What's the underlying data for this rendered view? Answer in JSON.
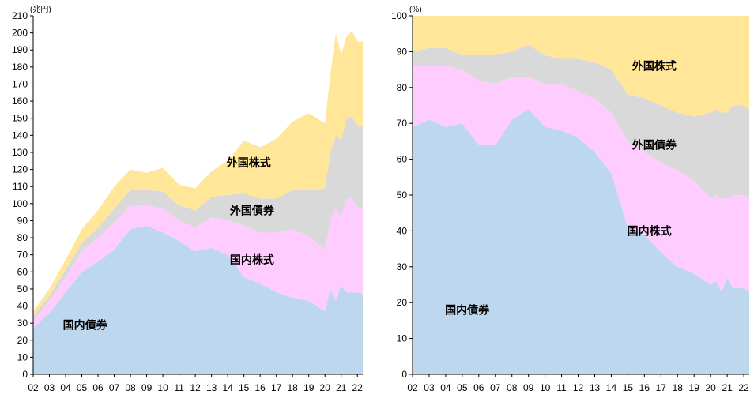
{
  "chart_data": [
    {
      "type": "area",
      "stacked": true,
      "unit_label": "(兆円)",
      "x": [
        "02",
        "03",
        "04",
        "05",
        "06",
        "07",
        "08",
        "09",
        "10",
        "11",
        "12",
        "13",
        "14",
        "15",
        "16",
        "17",
        "18",
        "19",
        "20",
        "20.33",
        "20.67",
        "21",
        "21.33",
        "21.67",
        "22",
        "22.33"
      ],
      "xticks": [
        "02",
        "03",
        "04",
        "05",
        "06",
        "07",
        "08",
        "09",
        "10",
        "11",
        "12",
        "13",
        "14",
        "15",
        "16",
        "17",
        "18",
        "19",
        "20",
        "21",
        "22"
      ],
      "ylim": [
        0,
        210
      ],
      "yticks": [
        0,
        10,
        20,
        30,
        40,
        50,
        60,
        70,
        80,
        90,
        100,
        110,
        120,
        130,
        140,
        150,
        160,
        170,
        180,
        190,
        200,
        210
      ],
      "series": [
        {
          "name": "国内債券",
          "color": "#bdd7ee",
          "values": [
            27,
            36,
            48,
            60,
            66,
            73,
            85,
            87,
            83,
            78,
            72,
            74,
            70,
            57,
            53,
            48,
            45,
            43,
            37,
            50,
            43,
            52,
            48,
            48,
            48,
            47
          ]
        },
        {
          "name": "国内株式",
          "color": "#ffccff",
          "values": [
            5,
            7,
            9,
            12,
            14,
            16,
            14,
            12,
            14,
            12,
            14,
            18,
            20,
            30,
            30,
            35,
            40,
            38,
            36,
            40,
            55,
            40,
            55,
            55,
            50,
            50
          ]
        },
        {
          "name": "外国債券",
          "color": "#d9d9d9",
          "values": [
            2,
            3,
            4,
            5,
            6,
            8,
            9,
            9,
            10,
            9,
            10,
            12,
            15,
            19,
            20,
            20,
            23,
            27,
            36,
            40,
            42,
            45,
            47,
            48,
            48,
            48
          ]
        },
        {
          "name": "外国株式",
          "color": "#ffe699",
          "values": [
            3,
            4,
            6,
            8,
            10,
            13,
            12,
            10,
            14,
            12,
            13,
            15,
            20,
            31,
            30,
            35,
            40,
            45,
            38,
            45,
            60,
            50,
            48,
            50,
            49,
            50
          ]
        }
      ],
      "labels": [
        {
          "text": "外国株式",
          "x": 15.3,
          "y": 124
        },
        {
          "text": "外国債券",
          "x": 15.5,
          "y": 96
        },
        {
          "text": "国内株式",
          "x": 15.5,
          "y": 67
        },
        {
          "text": "国内債券",
          "x": 5.2,
          "y": 29
        }
      ]
    },
    {
      "type": "area",
      "stacked": true,
      "unit_label": "(%)",
      "x": [
        "02",
        "03",
        "04",
        "05",
        "06",
        "07",
        "08",
        "09",
        "10",
        "11",
        "12",
        "13",
        "14",
        "15",
        "16",
        "17",
        "18",
        "19",
        "20",
        "20.33",
        "20.67",
        "21",
        "21.33",
        "21.67",
        "22",
        "22.33"
      ],
      "xticks": [
        "02",
        "03",
        "04",
        "05",
        "06",
        "07",
        "08",
        "09",
        "10",
        "11",
        "12",
        "13",
        "14",
        "15",
        "16",
        "17",
        "18",
        "19",
        "20",
        "21",
        "22"
      ],
      "ylim": [
        0,
        100
      ],
      "yticks": [
        0,
        10,
        20,
        30,
        40,
        50,
        60,
        70,
        80,
        90,
        100
      ],
      "series": [
        {
          "name": "国内債券",
          "color": "#bdd7ee",
          "values": [
            69,
            71,
            69,
            70,
            64,
            64,
            71,
            74,
            69,
            68,
            66,
            62,
            56,
            41,
            39,
            34,
            30,
            28,
            25,
            26,
            23,
            27,
            24,
            24,
            24,
            23
          ]
        },
        {
          "name": "国内株式",
          "color": "#ffccff",
          "values": [
            17,
            15,
            17,
            15,
            18,
            17,
            12,
            9,
            12,
            13,
            13,
            15,
            17,
            24,
            23,
            25,
            27,
            26,
            24,
            24,
            26,
            22,
            26,
            26,
            26,
            26
          ]
        },
        {
          "name": "外国債券",
          "color": "#d9d9d9",
          "values": [
            4,
            5,
            5,
            4,
            7,
            8,
            7,
            9,
            8,
            7,
            9,
            10,
            12,
            13,
            15,
            16,
            16,
            18,
            24,
            24,
            24,
            24,
            25,
            25,
            25,
            25
          ]
        },
        {
          "name": "外国株式",
          "color": "#ffe699",
          "values": [
            10,
            9,
            9,
            11,
            11,
            11,
            10,
            8,
            11,
            12,
            12,
            13,
            15,
            22,
            23,
            25,
            27,
            28,
            27,
            26,
            27,
            27,
            25,
            25,
            25,
            26
          ]
        }
      ],
      "labels": [
        {
          "text": "外国株式",
          "x": 16.6,
          "y": 86
        },
        {
          "text": "外国債券",
          "x": 16.6,
          "y": 64
        },
        {
          "text": "国内株式",
          "x": 16.3,
          "y": 40
        },
        {
          "text": "国内債券",
          "x": 5.3,
          "y": 18
        }
      ]
    }
  ]
}
